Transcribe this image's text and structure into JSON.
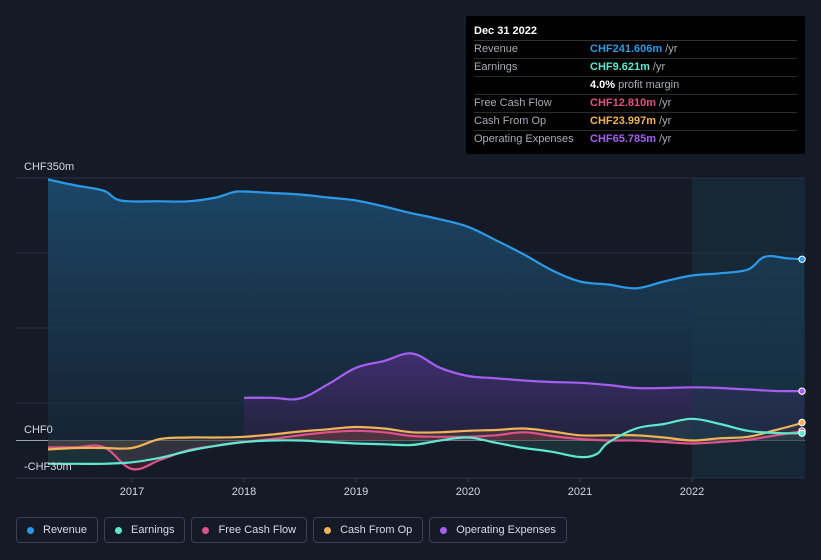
{
  "tooltip": {
    "date": "Dec 31 2022",
    "rows": [
      {
        "label": "Revenue",
        "value": "CHF241.606m",
        "unit": "/yr",
        "color": "#2d9ae8"
      },
      {
        "label": "Earnings",
        "value": "CHF9.621m",
        "unit": "/yr",
        "color": "#5ee8d0"
      },
      {
        "label": "",
        "value": "4.0%",
        "unit": "profit margin",
        "color": "#ffffff"
      },
      {
        "label": "Free Cash Flow",
        "value": "CHF12.810m",
        "unit": "/yr",
        "color": "#e0528a"
      },
      {
        "label": "Cash From Op",
        "value": "CHF23.997m",
        "unit": "/yr",
        "color": "#f0b35a"
      },
      {
        "label": "Operating Expenses",
        "value": "CHF65.785m",
        "unit": "/yr",
        "color": "#a55ff0"
      }
    ]
  },
  "legend": [
    {
      "label": "Revenue",
      "color": "#2d9ae8"
    },
    {
      "label": "Earnings",
      "color": "#5ee8d0"
    },
    {
      "label": "Free Cash Flow",
      "color": "#e0528a"
    },
    {
      "label": "Cash From Op",
      "color": "#f0b35a"
    },
    {
      "label": "Operating Expenses",
      "color": "#a55ff0"
    }
  ],
  "chart_data": {
    "type": "area",
    "ylim": [
      -50,
      350
    ],
    "yticks": [
      {
        "value": 350,
        "label": "CHF350m"
      },
      {
        "value": 0,
        "label": "CHF0"
      },
      {
        "value": -30,
        "label": "-CHF30m"
      }
    ],
    "xlim": [
      2016.25,
      2023.0
    ],
    "xticks": [
      2017,
      2018,
      2019,
      2020,
      2021,
      2022
    ],
    "highlight_from": 2022.0,
    "series": [
      {
        "name": "Revenue",
        "color": "#2d9ae8",
        "points": [
          [
            2016.25,
            348
          ],
          [
            2016.5,
            340
          ],
          [
            2016.75,
            333
          ],
          [
            2016.9,
            320
          ],
          [
            2017.25,
            319
          ],
          [
            2017.5,
            319
          ],
          [
            2017.75,
            324
          ],
          [
            2017.9,
            331
          ],
          [
            2018.0,
            332
          ],
          [
            2018.25,
            330
          ],
          [
            2018.5,
            328
          ],
          [
            2018.75,
            324
          ],
          [
            2019.0,
            320
          ],
          [
            2019.25,
            312
          ],
          [
            2019.5,
            303
          ],
          [
            2019.75,
            295
          ],
          [
            2020.0,
            285
          ],
          [
            2020.25,
            267
          ],
          [
            2020.5,
            248
          ],
          [
            2020.75,
            227
          ],
          [
            2021.0,
            212
          ],
          [
            2021.25,
            208
          ],
          [
            2021.5,
            203
          ],
          [
            2021.75,
            212
          ],
          [
            2022.0,
            220
          ],
          [
            2022.25,
            223
          ],
          [
            2022.5,
            228
          ],
          [
            2022.65,
            245
          ],
          [
            2022.85,
            243
          ],
          [
            2023.0,
            241.6
          ]
        ]
      },
      {
        "name": "Operating Expenses",
        "color": "#a55ff0",
        "points": [
          [
            2018.0,
            57
          ],
          [
            2018.25,
            57
          ],
          [
            2018.5,
            56
          ],
          [
            2018.75,
            75
          ],
          [
            2019.0,
            97
          ],
          [
            2019.25,
            106
          ],
          [
            2019.5,
            116
          ],
          [
            2019.75,
            97
          ],
          [
            2020.0,
            86
          ],
          [
            2020.25,
            83
          ],
          [
            2020.5,
            80
          ],
          [
            2020.75,
            78
          ],
          [
            2021.0,
            77
          ],
          [
            2021.25,
            74
          ],
          [
            2021.5,
            70
          ],
          [
            2021.75,
            70
          ],
          [
            2022.0,
            71
          ],
          [
            2022.25,
            70
          ],
          [
            2022.5,
            68
          ],
          [
            2022.75,
            66
          ],
          [
            2023.0,
            65.8
          ]
        ]
      },
      {
        "name": "Earnings",
        "color": "#5ee8d0",
        "points": [
          [
            2016.25,
            -31
          ],
          [
            2016.5,
            -31
          ],
          [
            2016.75,
            -31
          ],
          [
            2017.0,
            -29
          ],
          [
            2017.25,
            -23
          ],
          [
            2017.5,
            -14
          ],
          [
            2017.75,
            -7
          ],
          [
            2018.0,
            -2
          ],
          [
            2018.25,
            0
          ],
          [
            2018.5,
            0
          ],
          [
            2018.75,
            -2
          ],
          [
            2019.0,
            -4
          ],
          [
            2019.25,
            -5
          ],
          [
            2019.5,
            -6
          ],
          [
            2019.75,
            0
          ],
          [
            2020.0,
            4
          ],
          [
            2020.25,
            -3
          ],
          [
            2020.5,
            -10
          ],
          [
            2020.75,
            -15
          ],
          [
            2021.0,
            -22
          ],
          [
            2021.15,
            -18
          ],
          [
            2021.25,
            -3
          ],
          [
            2021.5,
            16
          ],
          [
            2021.75,
            22
          ],
          [
            2022.0,
            29
          ],
          [
            2022.25,
            22
          ],
          [
            2022.5,
            13
          ],
          [
            2022.75,
            10
          ],
          [
            2023.0,
            9.6
          ]
        ]
      },
      {
        "name": "Free Cash Flow",
        "color": "#e0528a",
        "points": [
          [
            2016.25,
            -9
          ],
          [
            2016.5,
            -9
          ],
          [
            2016.75,
            -9
          ],
          [
            2017.0,
            -38
          ],
          [
            2017.25,
            -26
          ],
          [
            2017.5,
            -13
          ],
          [
            2017.75,
            -7
          ],
          [
            2018.0,
            -2
          ],
          [
            2018.25,
            2
          ],
          [
            2018.5,
            7
          ],
          [
            2018.75,
            11
          ],
          [
            2019.0,
            13
          ],
          [
            2019.25,
            11
          ],
          [
            2019.5,
            6
          ],
          [
            2019.75,
            5
          ],
          [
            2020.0,
            5
          ],
          [
            2020.25,
            7
          ],
          [
            2020.5,
            11
          ],
          [
            2020.75,
            6
          ],
          [
            2021.0,
            2
          ],
          [
            2021.25,
            0
          ],
          [
            2021.5,
            0
          ],
          [
            2021.75,
            -2
          ],
          [
            2022.0,
            -4
          ],
          [
            2022.25,
            -2
          ],
          [
            2022.5,
            1
          ],
          [
            2022.75,
            7
          ],
          [
            2023.0,
            12.8
          ]
        ]
      },
      {
        "name": "Cash From Op",
        "color": "#f0b35a",
        "points": [
          [
            2016.25,
            -12
          ],
          [
            2016.5,
            -10
          ],
          [
            2016.75,
            -10
          ],
          [
            2017.0,
            -10
          ],
          [
            2017.25,
            2
          ],
          [
            2017.5,
            4
          ],
          [
            2017.75,
            4
          ],
          [
            2018.0,
            5
          ],
          [
            2018.25,
            8
          ],
          [
            2018.5,
            12
          ],
          [
            2018.75,
            15
          ],
          [
            2019.0,
            18
          ],
          [
            2019.25,
            16
          ],
          [
            2019.5,
            11
          ],
          [
            2019.75,
            11
          ],
          [
            2020.0,
            13
          ],
          [
            2020.25,
            14
          ],
          [
            2020.5,
            16
          ],
          [
            2020.75,
            12
          ],
          [
            2021.0,
            7
          ],
          [
            2021.25,
            7
          ],
          [
            2021.5,
            7
          ],
          [
            2021.75,
            4
          ],
          [
            2022.0,
            0
          ],
          [
            2022.25,
            3
          ],
          [
            2022.5,
            5
          ],
          [
            2022.75,
            14
          ],
          [
            2023.0,
            24
          ]
        ]
      }
    ]
  }
}
